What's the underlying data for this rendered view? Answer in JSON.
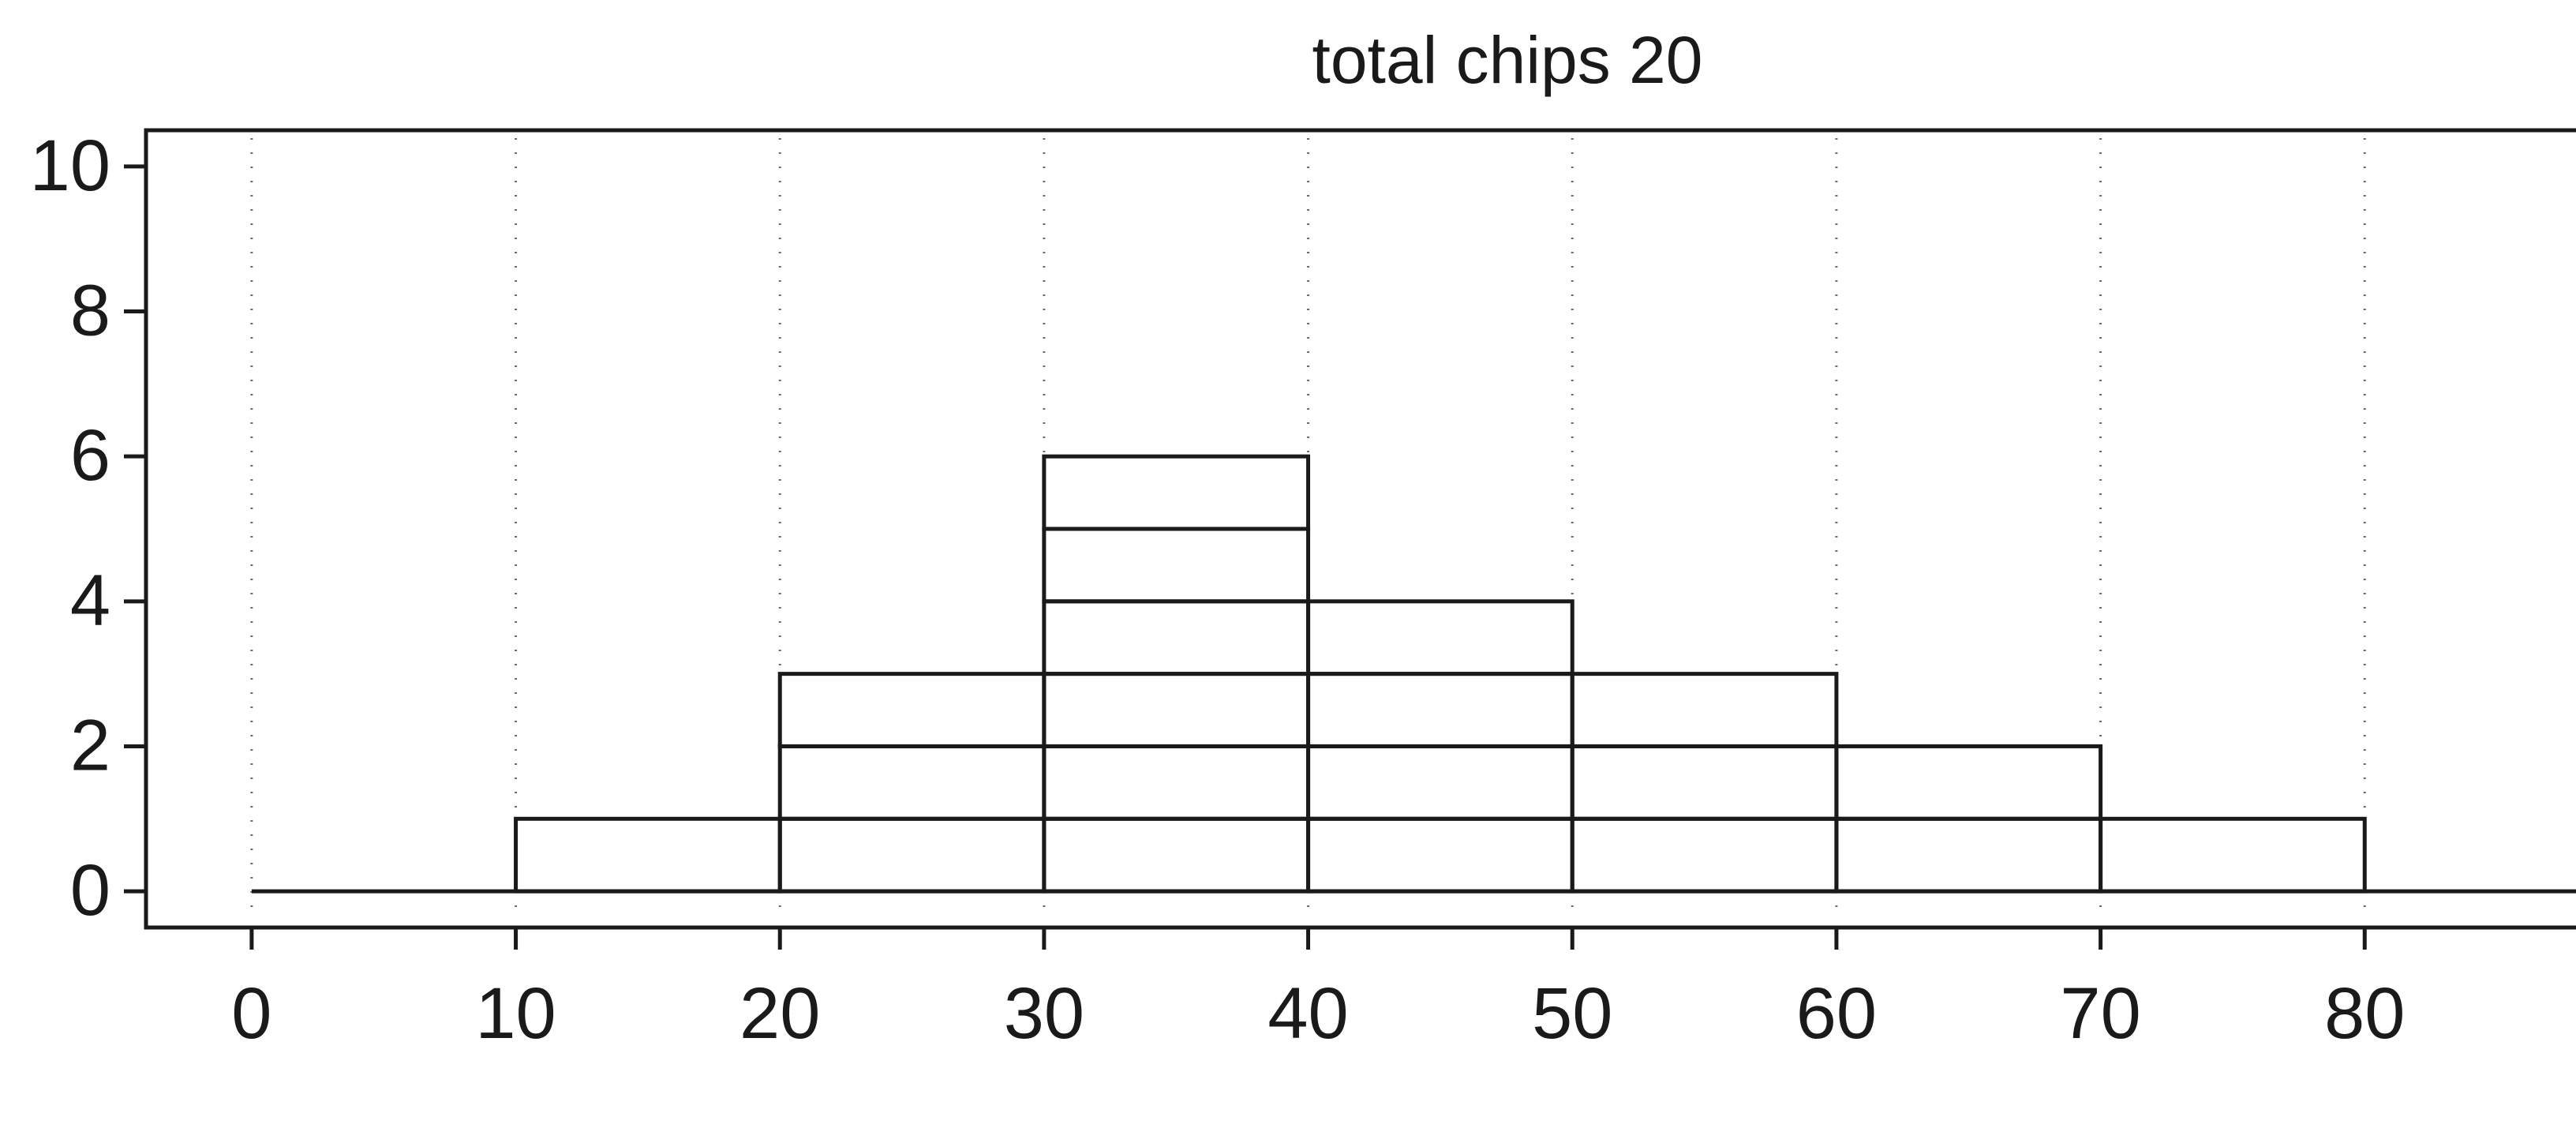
{
  "chart_data": {
    "type": "bar",
    "title": "total chips 20",
    "x_tick_labels": [
      "0",
      "10",
      "20",
      "30",
      "40",
      "50",
      "60",
      "70",
      "80"
    ],
    "y_tick_labels": [
      "0",
      "2",
      "4",
      "6",
      "8",
      "10"
    ],
    "xlim": [
      -4,
      88
    ],
    "ylim": [
      -0.5,
      10.5
    ],
    "grid": "vertical-dotted",
    "bins": [
      {
        "x0": 10,
        "x1": 20,
        "count": 1
      },
      {
        "x0": 20,
        "x1": 30,
        "count": 3
      },
      {
        "x0": 30,
        "x1": 40,
        "count": 6
      },
      {
        "x0": 40,
        "x1": 50,
        "count": 4
      },
      {
        "x0": 50,
        "x1": 60,
        "count": 3
      },
      {
        "x0": 60,
        "x1": 70,
        "count": 2
      },
      {
        "x0": 70,
        "x1": 80,
        "count": 1
      }
    ],
    "baseline_range": [
      0,
      88
    ]
  },
  "colors": {
    "ink": "#1a1a1a",
    "grid": "#6b6b6b",
    "background": "#ffffff"
  }
}
